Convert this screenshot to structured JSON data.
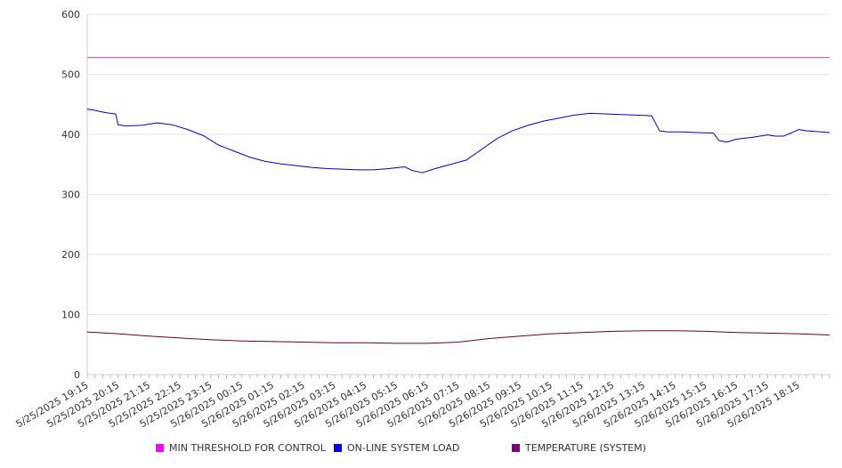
{
  "chart_data": {
    "type": "line",
    "title": "",
    "xlabel": "",
    "ylabel": "",
    "ylim": [
      0,
      600
    ],
    "yticks": [
      0,
      100,
      200,
      300,
      400,
      500,
      600
    ],
    "grid": true,
    "legend_position": "bottom",
    "x_tick_labels": [
      "5/25/2025 19:15",
      "5/25/2025 20:15",
      "5/25/2025 21:15",
      "5/25/2025 22:15",
      "5/25/2025 23:15",
      "5/26/2025 00:15",
      "5/26/2025 01:15",
      "5/26/2025 02:15",
      "5/26/2025 03:15",
      "5/26/2025 04:15",
      "5/26/2025 05:15",
      "5/26/2025 06:15",
      "5/26/2025 07:15",
      "5/26/2025 08:15",
      "5/26/2025 09:15",
      "5/26/2025 10:15",
      "5/26/2025 11:15",
      "5/26/2025 12:15",
      "5/26/2025 13:15",
      "5/26/2025 14:15",
      "5/26/2025 15:15",
      "5/26/2025 16:15",
      "5/26/2025 17:15",
      "5/26/2025 18:15"
    ],
    "x_end": "5/26/2025 19:15",
    "series": [
      {
        "name": "MIN THRESHOLD FOR CONTROL",
        "color": "#ff00ff",
        "line_color": "#cc44cc",
        "points": [
          [
            "5/25/2025 19:15",
            528
          ],
          [
            "5/26/2025 19:15",
            528
          ]
        ]
      },
      {
        "name": "ON-LINE SYSTEM LOAD",
        "color": "#0000ff",
        "line_color": "#0000cc",
        "points": [
          [
            "5/25/2025 19:15",
            442
          ],
          [
            "5/25/2025 19:30",
            440
          ],
          [
            "5/25/2025 19:45",
            437
          ],
          [
            "5/25/2025 20:00",
            435
          ],
          [
            "5/25/2025 20:10",
            434
          ],
          [
            "5/25/2025 20:15",
            416
          ],
          [
            "5/25/2025 20:30",
            414
          ],
          [
            "5/25/2025 21:00",
            415
          ],
          [
            "5/25/2025 21:30",
            419
          ],
          [
            "5/25/2025 22:00",
            416
          ],
          [
            "5/25/2025 22:30",
            408
          ],
          [
            "5/25/2025 23:00",
            398
          ],
          [
            "5/25/2025 23:30",
            382
          ],
          [
            "5/26/2025 00:00",
            372
          ],
          [
            "5/26/2025 00:30",
            362
          ],
          [
            "5/26/2025 01:00",
            355
          ],
          [
            "5/26/2025 01:30",
            351
          ],
          [
            "5/26/2025 02:00",
            348
          ],
          [
            "5/26/2025 02:30",
            345
          ],
          [
            "5/26/2025 03:00",
            343
          ],
          [
            "5/26/2025 03:30",
            342
          ],
          [
            "5/26/2025 04:00",
            341
          ],
          [
            "5/26/2025 04:30",
            341
          ],
          [
            "5/26/2025 05:00",
            343
          ],
          [
            "5/26/2025 05:30",
            346
          ],
          [
            "5/26/2025 05:45",
            340
          ],
          [
            "5/26/2025 06:05",
            336
          ],
          [
            "5/26/2025 06:30",
            343
          ],
          [
            "5/26/2025 07:00",
            350
          ],
          [
            "5/26/2025 07:30",
            357
          ],
          [
            "5/26/2025 08:00",
            375
          ],
          [
            "5/26/2025 08:30",
            393
          ],
          [
            "5/26/2025 09:00",
            406
          ],
          [
            "5/26/2025 09:30",
            415
          ],
          [
            "5/26/2025 10:00",
            422
          ],
          [
            "5/26/2025 10:30",
            427
          ],
          [
            "5/26/2025 11:00",
            432
          ],
          [
            "5/26/2025 11:30",
            435
          ],
          [
            "5/26/2025 12:00",
            434
          ],
          [
            "5/26/2025 12:30",
            433
          ],
          [
            "5/26/2025 13:00",
            432
          ],
          [
            "5/26/2025 13:30",
            431
          ],
          [
            "5/26/2025 13:45",
            406
          ],
          [
            "5/26/2025 14:00",
            404
          ],
          [
            "5/26/2025 14:30",
            404
          ],
          [
            "5/26/2025 15:00",
            403
          ],
          [
            "5/26/2025 15:30",
            402
          ],
          [
            "5/26/2025 15:40",
            390
          ],
          [
            "5/26/2025 15:55",
            387
          ],
          [
            "5/26/2025 16:15",
            392
          ],
          [
            "5/26/2025 16:45",
            395
          ],
          [
            "5/26/2025 17:15",
            399
          ],
          [
            "5/26/2025 17:30",
            397
          ],
          [
            "5/26/2025 17:45",
            397
          ],
          [
            "5/26/2025 18:00",
            402
          ],
          [
            "5/26/2025 18:15",
            408
          ],
          [
            "5/26/2025 18:30",
            406
          ],
          [
            "5/26/2025 19:15",
            403
          ]
        ]
      },
      {
        "name": "TEMPERATURE (SYSTEM)",
        "color": "#800080",
        "line_color": "#660033",
        "points": [
          [
            "5/25/2025 19:15",
            71
          ],
          [
            "5/25/2025 20:15",
            68
          ],
          [
            "5/25/2025 21:15",
            64
          ],
          [
            "5/25/2025 22:15",
            61
          ],
          [
            "5/25/2025 23:15",
            58
          ],
          [
            "5/26/2025 00:15",
            56
          ],
          [
            "5/26/2025 01:15",
            55
          ],
          [
            "5/26/2025 02:15",
            54
          ],
          [
            "5/26/2025 03:15",
            53
          ],
          [
            "5/26/2025 04:15",
            53
          ],
          [
            "5/26/2025 05:15",
            52
          ],
          [
            "5/26/2025 06:15",
            52
          ],
          [
            "5/26/2025 07:15",
            54
          ],
          [
            "5/26/2025 08:15",
            60
          ],
          [
            "5/26/2025 09:15",
            64
          ],
          [
            "5/26/2025 10:15",
            68
          ],
          [
            "5/26/2025 11:15",
            70
          ],
          [
            "5/26/2025 12:15",
            72
          ],
          [
            "5/26/2025 13:15",
            73
          ],
          [
            "5/26/2025 14:15",
            73
          ],
          [
            "5/26/2025 15:15",
            72
          ],
          [
            "5/26/2025 16:15",
            70
          ],
          [
            "5/26/2025 17:15",
            69
          ],
          [
            "5/26/2025 18:15",
            68
          ],
          [
            "5/26/2025 19:15",
            66
          ]
        ]
      }
    ]
  }
}
